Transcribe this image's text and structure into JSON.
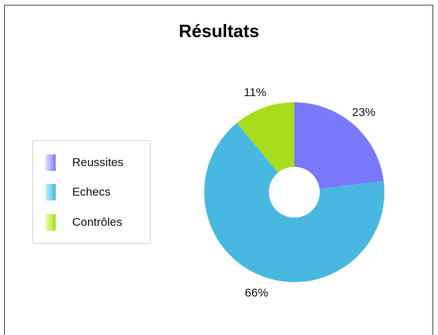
{
  "chart_data": {
    "type": "pie",
    "donut": true,
    "title": "Résultats",
    "legend_position": "left",
    "categories": [
      "Reussites",
      "Echecs",
      "Contrôles"
    ],
    "values": [
      23,
      66,
      11
    ],
    "value_labels": [
      "23%",
      "66%",
      "11%"
    ],
    "colors": [
      "#7a79fb",
      "#48b8e0",
      "#a8dd1e"
    ],
    "legend_gradient_light": [
      "#e6e6ff",
      "#c9f1fb",
      "#efffa8"
    ]
  }
}
